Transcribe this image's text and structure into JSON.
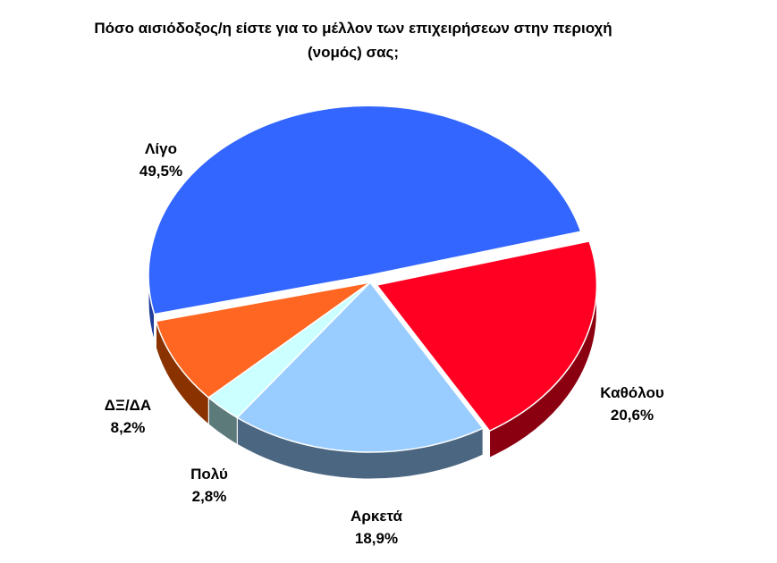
{
  "chart_data": {
    "type": "pie",
    "title": [
      "Πόσο αισιόδοξος/η είστε για το μέλλον των επιχειρήσεων στην περιοχή",
      "(νομός)  σας;"
    ],
    "slices": [
      {
        "label": "Λίγο",
        "value": 49.5,
        "value_label": "49,5%",
        "color": "#3366FF",
        "side_color": "#1F3D99"
      },
      {
        "label": "Καθόλου",
        "value": 20.6,
        "value_label": "20,6%",
        "color": "#FF0022",
        "side_color": "#8B0010"
      },
      {
        "label": "Αρκετά",
        "value": 18.9,
        "value_label": "18,9%",
        "color": "#99CCFF",
        "side_color": "#4A6680"
      },
      {
        "label": "Πολύ",
        "value": 2.8,
        "value_label": "2,8%",
        "color": "#CCFFFF",
        "side_color": "#5C7A7A"
      },
      {
        "label": "ΔΞ/ΔΑ",
        "value": 8.2,
        "value_label": "8,2%",
        "color": "#FF6622",
        "side_color": "#8B3300"
      }
    ],
    "legend": "none"
  }
}
